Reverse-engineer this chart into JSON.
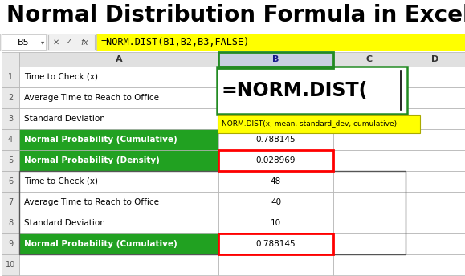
{
  "title": "Normal Distribution Formula in Excel",
  "title_fontsize": 20,
  "bg_color": "#ffffff",
  "formula_bar_cell": "B5",
  "formula_bar_formula": "=NORM.DIST(B1,B2,B3,FALSE)",
  "formula_bar_bg": "#ffff00",
  "rows": [
    {
      "num": 1,
      "label": "Time to Check (x)",
      "value": "",
      "green": false
    },
    {
      "num": 2,
      "label": "Average Time to Reach to Office",
      "value": "",
      "green": false
    },
    {
      "num": 3,
      "label": "Standard Deviation",
      "value": "",
      "green": false
    },
    {
      "num": 4,
      "label": "Normal Probability (Cumulative)",
      "value": "0.788145",
      "green": true
    },
    {
      "num": 5,
      "label": "Normal Probability (Density)",
      "value": "0.028969",
      "green": true
    },
    {
      "num": 6,
      "label": "Time to Check (x)",
      "value": "48",
      "green": false
    },
    {
      "num": 7,
      "label": "Average Time to Reach to Office",
      "value": "40",
      "green": false
    },
    {
      "num": 8,
      "label": "Standard Deviation",
      "value": "10",
      "green": false
    },
    {
      "num": 9,
      "label": "Normal Probability (Cumulative)",
      "value": "0.788145",
      "green": true
    },
    {
      "num": 10,
      "label": "",
      "value": "",
      "green": false
    }
  ],
  "green_color": "#21a121",
  "green_text_color": "#ffffff",
  "tooltip_text": "NORM.DIST(x, mean, standard_dev, cumulative)",
  "tooltip_bg": "#ffff00",
  "big_formula_text": "=NORM.DIST(",
  "grid_line_color": "#b0b0b0",
  "header_bg": "#e0e0e0",
  "header_b_bg": "#c8d0e0",
  "row_num_bg": "#e8e8e8",
  "formula_bar_gray": "#f0f0f0"
}
